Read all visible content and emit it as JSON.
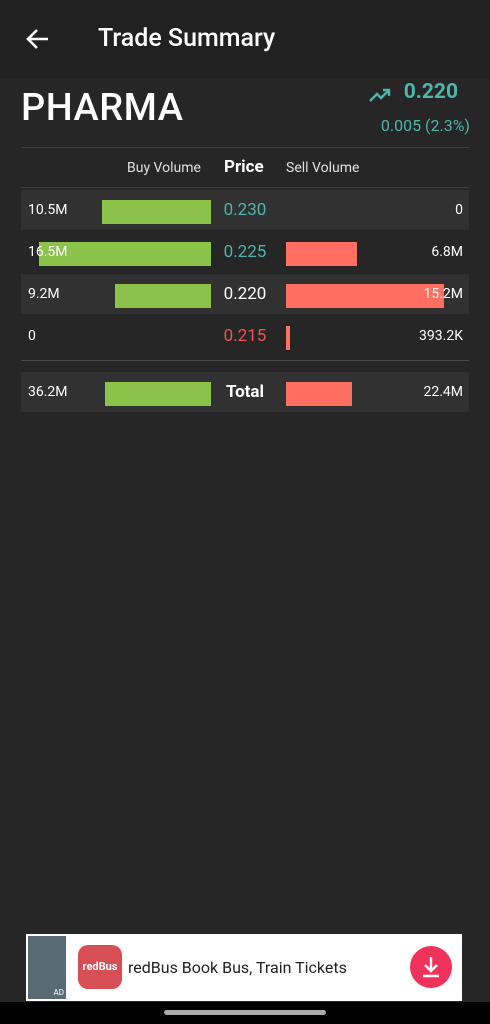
{
  "header": {
    "title": "Trade Summary"
  },
  "stock": {
    "name": "PHARMA",
    "price": "0.220",
    "change": "0.005 (2.3%)"
  },
  "table": {
    "columns": [
      "Buy Volume",
      "Price",
      "Sell Volume"
    ],
    "rows": [
      {
        "price": "0.230",
        "color": "#4db6ac",
        "buy": {
          "value": 10500000,
          "label": "10.5M"
        },
        "sell": {
          "value": 0,
          "label": "0"
        }
      },
      {
        "price": "0.225",
        "color": "#4db6ac",
        "buy": {
          "value": 16500000,
          "label": "16.5M"
        },
        "sell": {
          "value": 6800000,
          "label": "6.8M"
        }
      },
      {
        "price": "0.220",
        "color": "#ffffff",
        "buy": {
          "value": 9200000,
          "label": "9.2M"
        },
        "sell": {
          "value": 15200000,
          "label": "15.2M"
        }
      },
      {
        "price": "0.215",
        "color": "#ef5350",
        "buy": {
          "value": 0,
          "label": "0"
        },
        "sell": {
          "value": 393200,
          "label": "393.2K"
        }
      }
    ],
    "total": {
      "label": "Total",
      "buy": {
        "value": 36200000,
        "label": "36.2M"
      },
      "sell": {
        "value": 22400000,
        "label": "22.4M"
      }
    },
    "buy_color": "#8bc34a",
    "sell_color": "#ff6f61"
  },
  "ad": {
    "badge": "AD",
    "logo": "redBus",
    "text": "redBus Book Bus, Train Tickets"
  }
}
